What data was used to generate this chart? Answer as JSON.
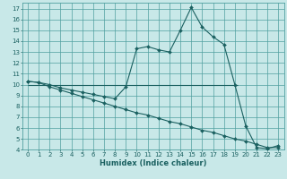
{
  "xlabel": "Humidex (Indice chaleur)",
  "background_color": "#c8e8e8",
  "grid_color": "#50a0a0",
  "line_color": "#1a6060",
  "xlim": [
    -0.5,
    23.5
  ],
  "ylim": [
    4,
    17.5
  ],
  "xtick_labels": [
    "0",
    "1",
    "2",
    "3",
    "4",
    "5",
    "6",
    "7",
    "8",
    "9",
    "10",
    "11",
    "12",
    "13",
    "14",
    "15",
    "16",
    "17",
    "18",
    "19",
    "20",
    "21",
    "22",
    "23"
  ],
  "ytick_labels": [
    "4",
    "5",
    "6",
    "7",
    "8",
    "9",
    "10",
    "11",
    "12",
    "13",
    "14",
    "15",
    "16",
    "17"
  ],
  "ytick_vals": [
    4,
    5,
    6,
    7,
    8,
    9,
    10,
    11,
    12,
    13,
    14,
    15,
    16,
    17
  ],
  "xtick_vals": [
    0,
    1,
    2,
    3,
    4,
    5,
    6,
    7,
    8,
    9,
    10,
    11,
    12,
    13,
    14,
    15,
    16,
    17,
    18,
    19,
    20,
    21,
    22,
    23
  ],
  "series1_x": [
    0,
    1,
    2,
    3,
    4,
    5,
    6,
    7,
    8,
    9,
    10,
    11,
    12,
    13,
    14,
    15,
    16,
    17,
    18,
    19,
    20,
    21,
    22,
    23
  ],
  "series1_y": [
    10.3,
    10.2,
    10.0,
    9.7,
    9.5,
    9.3,
    9.1,
    8.9,
    8.7,
    9.8,
    13.3,
    13.5,
    13.2,
    13.0,
    15.0,
    17.1,
    15.3,
    14.4,
    13.7,
    10.0,
    6.2,
    4.2,
    4.1,
    4.4
  ],
  "series2_x": [
    0,
    1,
    2,
    3,
    4,
    5,
    6,
    7,
    8,
    9,
    10,
    11,
    12,
    13,
    14,
    15,
    16,
    17,
    18,
    19,
    20,
    21,
    22,
    23
  ],
  "series2_y": [
    10.3,
    10.2,
    9.8,
    9.5,
    9.2,
    8.9,
    8.6,
    8.3,
    8.0,
    7.7,
    7.4,
    7.2,
    6.9,
    6.6,
    6.4,
    6.1,
    5.8,
    5.6,
    5.3,
    5.0,
    4.8,
    4.5,
    4.2,
    4.2
  ],
  "hline_y": 10.0,
  "hline_x_start": 0,
  "hline_x_end": 19.3,
  "marker_size": 2.0,
  "line_width": 0.8,
  "tick_fontsize": 5.0,
  "xlabel_fontsize": 6.0
}
